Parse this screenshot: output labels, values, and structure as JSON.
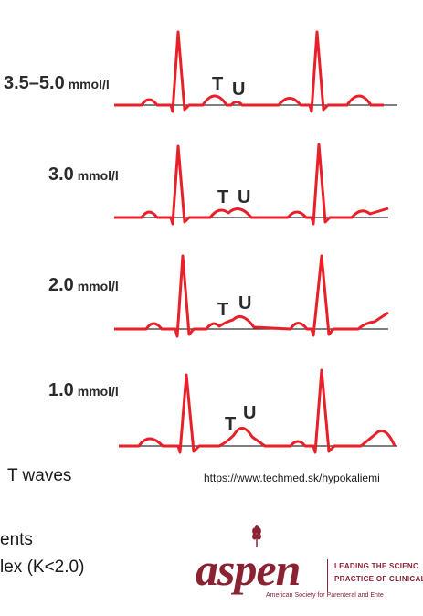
{
  "diagram": {
    "panels": [
      {
        "level_num": "3.5–5.0",
        "level_unit": " mmol/l",
        "t": "T",
        "u": "U"
      },
      {
        "level_num": "3.0",
        "level_unit": " mmol/l",
        "t": "T",
        "u": "U"
      },
      {
        "level_num": "2.0",
        "level_unit": " mmol/l",
        "t": "T",
        "u": "U"
      },
      {
        "level_num": "1.0",
        "level_unit": " mmol/l",
        "t": "T",
        "u": "U"
      }
    ],
    "colors": {
      "trace": "#e8202a",
      "baseline": "#333333"
    }
  },
  "text": {
    "t_waves": "T waves",
    "source": "https://www.techmed.sk/hypokaliemi",
    "bullet1": "ents",
    "bullet2": "lex (K<2.0)"
  },
  "logo": {
    "name": "aspen",
    "tagline1": "LEADING THE SCIENC",
    "tagline2": "PRACTICE OF CLINICAL",
    "tagline3": "American Society for Parenteral and Ente",
    "color": "#8a2232"
  }
}
